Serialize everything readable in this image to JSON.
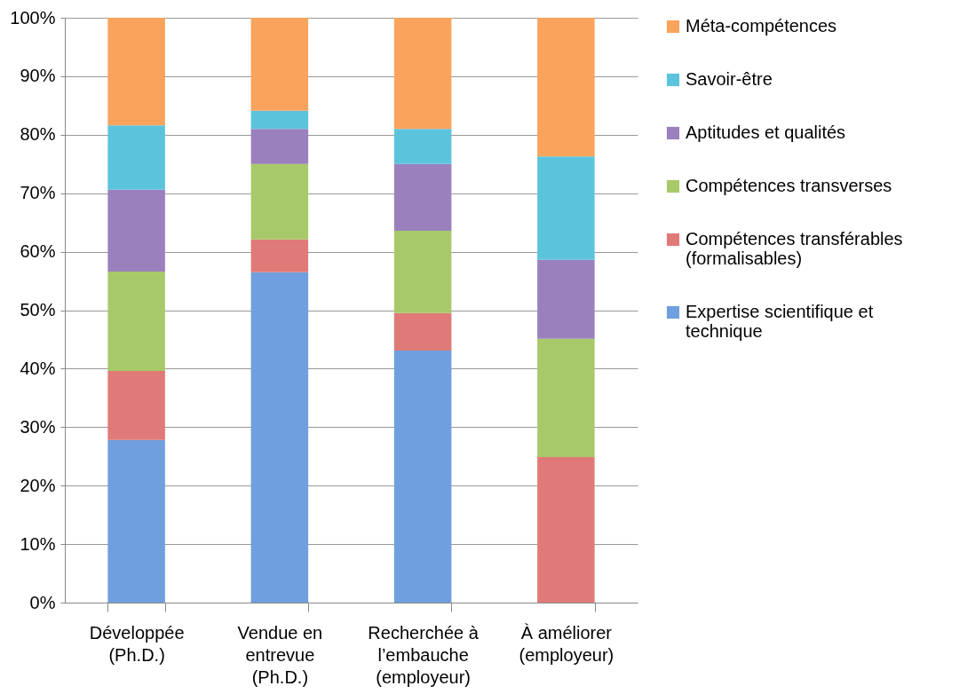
{
  "chart_data": {
    "type": "bar",
    "stacked": true,
    "categories": [
      "Développée\n(Ph.D.)",
      "Vendue en\nentrevue\n(Ph.D.)",
      "Recherchée à\nl’embauche\n(employeur)",
      "À améliorer\n(employeur)"
    ],
    "series": [
      {
        "name": "Expertise scientifique et\ntechnique",
        "color": "#6f9fde",
        "values": [
          27.8,
          56.5,
          43.1,
          0
        ]
      },
      {
        "name": "Compétences transférables\n(formalisables)",
        "color": "#e07a78",
        "values": [
          11.8,
          5.6,
          6.4,
          24.9
        ]
      },
      {
        "name": "Compétences transverses",
        "color": "#a8c96a",
        "values": [
          17.0,
          12.9,
          14.1,
          20.2
        ]
      },
      {
        "name": "Aptitudes et qualités",
        "color": "#9a80bd",
        "values": [
          14.0,
          6.0,
          11.4,
          13.5
        ]
      },
      {
        "name": "Savoir-être",
        "color": "#5cc3dd",
        "values": [
          11.0,
          3.1,
          6.0,
          17.7
        ]
      },
      {
        "name": "Méta-compétences",
        "color": "#f9a35c",
        "values": [
          18.4,
          15.9,
          19.0,
          23.7
        ]
      }
    ],
    "ylim": [
      0,
      100
    ],
    "yticks": [
      {
        "value": 0,
        "label": "0%"
      },
      {
        "value": 10,
        "label": "10%"
      },
      {
        "value": 20,
        "label": "20%"
      },
      {
        "value": 30,
        "label": "30%"
      },
      {
        "value": 40,
        "label": "40%"
      },
      {
        "value": 50,
        "label": "50%"
      },
      {
        "value": 60,
        "label": "60%"
      },
      {
        "value": 70,
        "label": "70%"
      },
      {
        "value": 80,
        "label": "80%"
      },
      {
        "value": 90,
        "label": "90%"
      },
      {
        "value": 100,
        "label": "100%"
      }
    ],
    "grid": "y",
    "legend": "right"
  }
}
